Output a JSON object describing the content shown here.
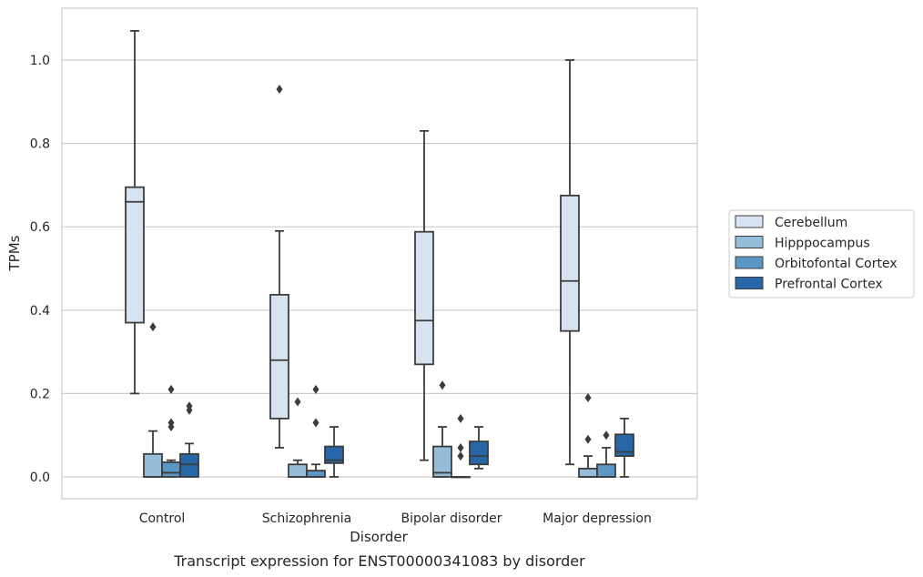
{
  "chart_data": {
    "type": "box",
    "title": "",
    "caption": "Transcript expression for ENST00000341083 by disorder",
    "xlabel": "Disorder",
    "ylabel": "TPMs",
    "ylim": [
      -0.05,
      1.13
    ],
    "yticks": [
      "0.0",
      "0.2",
      "0.4",
      "0.6",
      "0.8",
      "1.0"
    ],
    "grid": "horizontal",
    "legend_position": "right",
    "categories": [
      "Control",
      "Schizophrenia",
      "Bipolar disorder",
      "Major depression"
    ],
    "series": [
      {
        "name": "Cerebellum",
        "color": "#d6e4f2",
        "boxes": [
          {
            "q1": 0.37,
            "median": 0.66,
            "q3": 0.695,
            "whisker_low": 0.2,
            "whisker_high": 1.07,
            "outliers": []
          },
          {
            "q1": 0.14,
            "median": 0.28,
            "q3": 0.437,
            "whisker_low": 0.07,
            "whisker_high": 0.59,
            "outliers": [
              0.93
            ]
          },
          {
            "q1": 0.27,
            "median": 0.375,
            "q3": 0.588,
            "whisker_low": 0.04,
            "whisker_high": 0.83,
            "outliers": []
          },
          {
            "q1": 0.35,
            "median": 0.47,
            "q3": 0.675,
            "whisker_low": 0.03,
            "whisker_high": 1.0,
            "outliers": []
          }
        ]
      },
      {
        "name": "Hipppocampus",
        "color": "#93bdd9",
        "boxes": [
          {
            "q1": 0.0,
            "median": 0.0,
            "q3": 0.055,
            "whisker_low": 0.0,
            "whisker_high": 0.11,
            "outliers": [
              0.36
            ]
          },
          {
            "q1": 0.0,
            "median": 0.0,
            "q3": 0.03,
            "whisker_low": 0.0,
            "whisker_high": 0.04,
            "outliers": [
              0.18
            ]
          },
          {
            "q1": 0.0,
            "median": 0.01,
            "q3": 0.073,
            "whisker_low": 0.0,
            "whisker_high": 0.12,
            "outliers": [
              0.22
            ]
          },
          {
            "q1": 0.0,
            "median": 0.0,
            "q3": 0.02,
            "whisker_low": 0.0,
            "whisker_high": 0.05,
            "outliers": [
              0.19,
              0.09
            ]
          }
        ]
      },
      {
        "name": "Orbitofontal Cortex",
        "color": "#5a97c4",
        "boxes": [
          {
            "q1": 0.0,
            "median": 0.01,
            "q3": 0.035,
            "whisker_low": 0.0,
            "whisker_high": 0.04,
            "outliers": [
              0.21,
              0.13,
              0.12
            ]
          },
          {
            "q1": 0.0,
            "median": 0.0,
            "q3": 0.015,
            "whisker_low": 0.0,
            "whisker_high": 0.03,
            "outliers": [
              0.21,
              0.13
            ]
          },
          {
            "q1": 0.0,
            "median": 0.0,
            "q3": 0.0,
            "whisker_low": 0.0,
            "whisker_high": 0.0,
            "outliers": [
              0.14,
              0.07,
              0.05
            ]
          },
          {
            "q1": 0.0,
            "median": 0.0,
            "q3": 0.03,
            "whisker_low": 0.0,
            "whisker_high": 0.07,
            "outliers": [
              0.1
            ]
          }
        ]
      },
      {
        "name": "Prefrontal Cortex",
        "color": "#2767a8",
        "boxes": [
          {
            "q1": 0.0,
            "median": 0.03,
            "q3": 0.055,
            "whisker_low": 0.0,
            "whisker_high": 0.08,
            "outliers": [
              0.17,
              0.16
            ]
          },
          {
            "q1": 0.033,
            "median": 0.04,
            "q3": 0.073,
            "whisker_low": 0.0,
            "whisker_high": 0.12,
            "outliers": []
          },
          {
            "q1": 0.03,
            "median": 0.05,
            "q3": 0.085,
            "whisker_low": 0.02,
            "whisker_high": 0.12,
            "outliers": []
          },
          {
            "q1": 0.05,
            "median": 0.06,
            "q3": 0.102,
            "whisker_low": 0.0,
            "whisker_high": 0.14,
            "outliers": []
          }
        ]
      }
    ]
  }
}
